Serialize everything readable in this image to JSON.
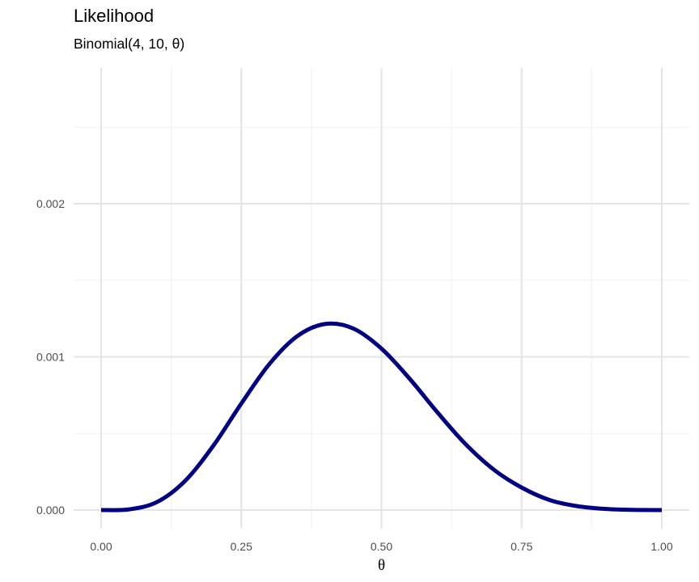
{
  "chart_data": {
    "type": "line",
    "title": "Likelihood",
    "subtitle": "Binomial(4, 10, θ)",
    "xlabel": "θ",
    "ylabel": "",
    "x_ticks": [
      "0.00",
      "0.25",
      "0.50",
      "0.75",
      "1.00"
    ],
    "y_ticks": [
      "0.000",
      "0.001",
      "0.002"
    ],
    "xlim": [
      0,
      1
    ],
    "ylim": [
      0,
      0.00275
    ],
    "grid": true,
    "legend": "none",
    "series": [
      {
        "color": "#000080",
        "x": [
          0.0,
          0.05,
          0.1,
          0.15,
          0.2,
          0.25,
          0.3,
          0.35,
          0.4,
          0.45,
          0.5,
          0.55,
          0.6,
          0.65,
          0.7,
          0.75,
          0.8,
          0.85,
          0.9,
          0.95,
          1.0
        ],
        "y": [
          0.0,
          4.6e-06,
          5.31e-05,
          0.0001913,
          0.0004194,
          0.0006952,
          0.000953,
          0.0011359,
          0.001215,
          0.0011847,
          0.0010541,
          0.0008584,
          0.000637,
          0.0004306,
          0.0002649,
          0.0001471,
          6.55e-05,
          2.51e-05,
          7.3e-06,
          1e-06,
          0.0
        ]
      }
    ]
  }
}
